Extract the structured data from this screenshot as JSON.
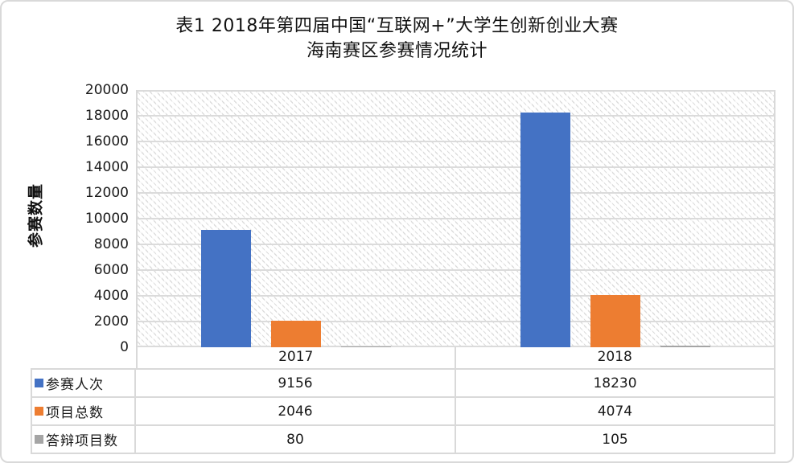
{
  "title": {
    "line1": "表1 2018年第四届中国“互联网+”大学生创新创业大赛",
    "line2": "海南赛区参赛情况统计"
  },
  "colors": {
    "series_blue": "#4472c4",
    "series_orange": "#ed7d31",
    "series_gray": "#a5a5a5",
    "gridline": "#d9d9d9"
  },
  "chart_data": {
    "type": "bar",
    "title": "表1 2018年第四届中国“互联网+”大学生创新创业大赛 海南赛区参赛情况统计",
    "categories": [
      "2017",
      "2018"
    ],
    "series": [
      {
        "key": "participants",
        "name": "参赛人次",
        "color": "#4472c4",
        "values": [
          9156,
          18230
        ]
      },
      {
        "key": "total-projects",
        "name": "项目总数",
        "color": "#ed7d31",
        "values": [
          2046,
          4074
        ]
      },
      {
        "key": "defense-projects",
        "name": "答辩项目数",
        "color": "#a5a5a5",
        "values": [
          80,
          105
        ]
      }
    ],
    "xlabel": "",
    "ylabel": "参赛数量",
    "ylim": [
      0,
      20000
    ],
    "ytick_step": 2000,
    "ytick_labels": [
      "0",
      "2000",
      "4000",
      "6000",
      "8000",
      "10000",
      "12000",
      "14000",
      "16000",
      "18000",
      "20000"
    ],
    "grid": true,
    "plot_background": "diagonal-hatch",
    "legend_position": "data-table-left"
  }
}
